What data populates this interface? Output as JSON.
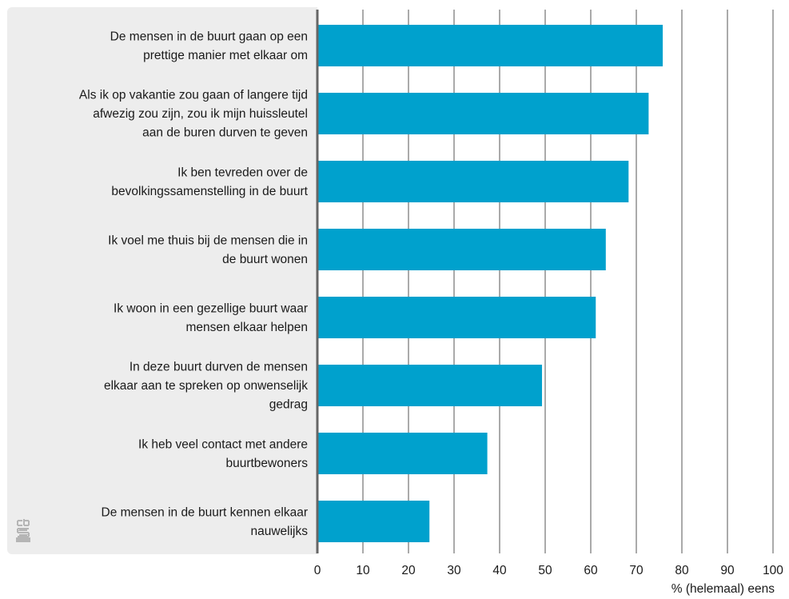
{
  "chart_data": {
    "type": "bar",
    "orientation": "horizontal",
    "categories": [
      [
        "De mensen in de buurt gaan op een",
        "prettige manier met elkaar om"
      ],
      [
        "Als ik op vakantie zou gaan of langere tijd",
        "afwezig zou zijn, zou ik mijn huissleutel",
        "aan de buren durven te geven"
      ],
      [
        "Ik ben tevreden over de",
        "bevolkingssamenstelling in de buurt"
      ],
      [
        "Ik voel me thuis bij de mensen die in",
        "de buurt wonen"
      ],
      [
        "Ik woon in een gezellige buurt waar",
        "mensen elkaar helpen"
      ],
      [
        "In deze buurt durven de mensen",
        "elkaar aan te spreken op onwenselijk",
        "gedrag"
      ],
      [
        "Ik heb veel contact met andere",
        "buurtbewoners"
      ],
      [
        "De mensen in de buurt kennen elkaar",
        "nauwelijks"
      ]
    ],
    "values": [
      75.8,
      72.7,
      68.3,
      63.3,
      61.1,
      49.3,
      37.3,
      24.6
    ],
    "xlim": [
      0,
      100
    ],
    "xticks": [
      "0",
      "10",
      "20",
      "30",
      "40",
      "50",
      "60",
      "70",
      "80",
      "90",
      "100"
    ],
    "xlabel": "% (helemaal) eens",
    "title": "",
    "grid": true,
    "bar_color": "#00a1cd",
    "panel_color": "#ededed",
    "axis_color": "#666666",
    "grid_color": "#555555",
    "logo_color": "#b5b5b5"
  },
  "logo": {
    "name": "cbs-logo",
    "text": "cbs"
  }
}
